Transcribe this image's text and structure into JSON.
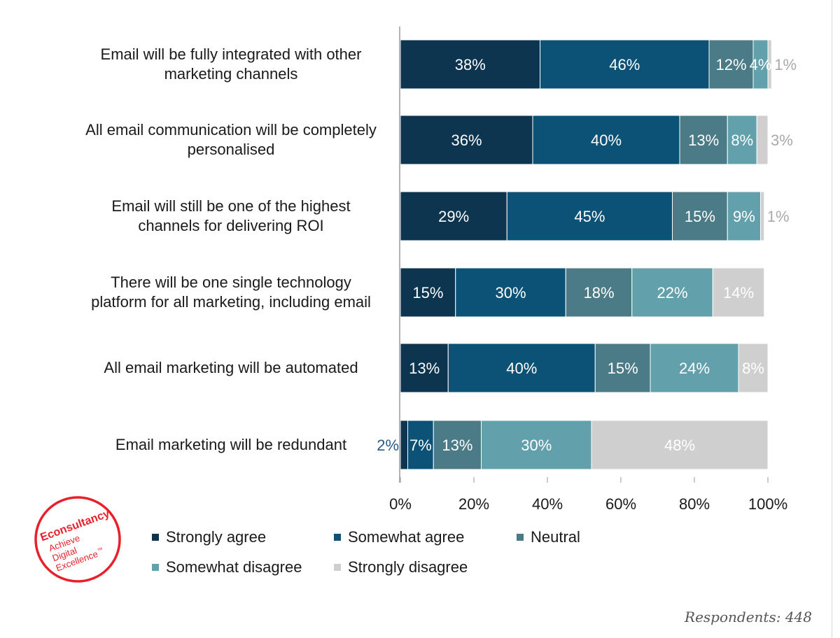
{
  "chart_data": {
    "type": "bar",
    "orientation": "horizontal",
    "stacked": true,
    "categories": [
      [
        "Email will be fully integrated with other",
        "marketing channels"
      ],
      [
        "All email communication will be completely",
        "personalised"
      ],
      [
        "Email will still be one of the highest",
        "channels for delivering ROI"
      ],
      [
        "There will be one single technology",
        "platform for all marketing, including email"
      ],
      [
        "All email marketing will be automated"
      ],
      [
        "Email marketing will be redundant"
      ]
    ],
    "series": [
      {
        "name": "Strongly agree",
        "color": "#0d3550",
        "values": [
          38,
          36,
          29,
          15,
          13,
          2
        ],
        "labels": [
          "38%",
          "36%",
          "29%",
          "15%",
          "13%",
          "2%"
        ]
      },
      {
        "name": "Somewhat agree",
        "color": "#0b5276",
        "values": [
          46,
          40,
          45,
          30,
          40,
          7
        ],
        "labels": [
          "46%",
          "40%",
          "45%",
          "30%",
          "40%",
          "7%"
        ]
      },
      {
        "name": "Neutral",
        "color": "#4a7b86",
        "values": [
          12,
          13,
          15,
          18,
          15,
          13
        ],
        "labels": [
          "12%",
          "13%",
          "15%",
          "18%",
          "15%",
          "13%"
        ]
      },
      {
        "name": "Somewhat disagree",
        "color": "#62a0ac",
        "values": [
          4,
          8,
          9,
          22,
          24,
          30
        ],
        "labels": [
          "4%",
          "8%",
          "9%",
          "22%",
          "24%",
          "30%"
        ]
      },
      {
        "name": "Strongly disagree",
        "color": "#cfcfcf",
        "values": [
          1,
          3,
          1,
          14,
          8,
          48
        ],
        "labels": [
          "1%",
          "3%",
          "1%",
          "14%",
          "8%",
          "48%"
        ]
      }
    ],
    "xticks": [
      "0%",
      "20%",
      "40%",
      "60%",
      "80%",
      "100%"
    ],
    "xlim": [
      0,
      100
    ],
    "legend_position": "bottom"
  },
  "brand": {
    "name": "Econsultancy",
    "tagline": [
      "Achieve",
      "Digital",
      "Excellence"
    ],
    "trademark": "™",
    "color": "#e8202a"
  },
  "footer": {
    "respondents": "Respondents: 448"
  }
}
